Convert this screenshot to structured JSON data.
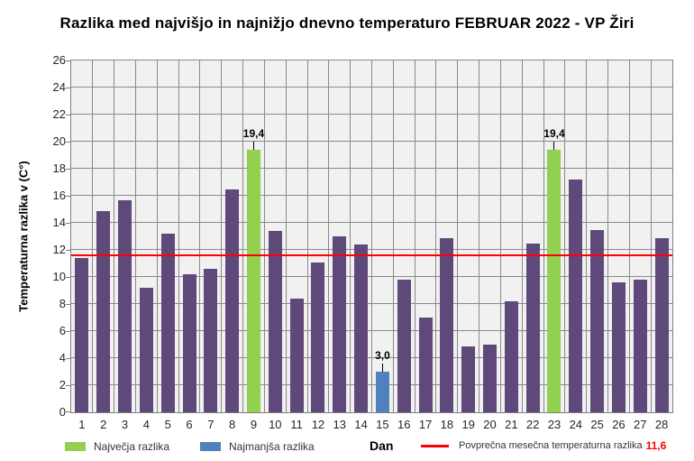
{
  "title": "Razlika med najvišjo in najnižjo dnevno temperaturo FEBRUAR 2022 - VP Žiri",
  "y_axis_title": "Temperaturna razlika v (C°)",
  "x_axis_title": "Dan",
  "legend": {
    "max_label": "Največja razlika",
    "min_label": "Najmanjša razlika",
    "avg_label": "Povprečna mesečna temperaturna razlika",
    "avg_value": "11,6"
  },
  "colors": {
    "bar_default": "#5F497A",
    "bar_max": "#92D050",
    "bar_min": "#4F81BD",
    "avg_line": "#FF0000",
    "plot_bg": "#F1F1F1",
    "gridline": "#898989"
  },
  "chart_data": {
    "type": "bar",
    "title": "Razlika med najvišjo in najnižjo dnevno temperaturo FEBRUAR 2022 - VP Žiri",
    "xlabel": "Dan",
    "ylabel": "Temperaturna razlika v (C°)",
    "ylim": [
      0,
      26
    ],
    "ytick_step": 2,
    "grid": true,
    "legend_position": "bottom",
    "categories": [
      1,
      2,
      3,
      4,
      5,
      6,
      7,
      8,
      9,
      10,
      11,
      12,
      13,
      14,
      15,
      16,
      17,
      18,
      19,
      20,
      21,
      22,
      23,
      24,
      25,
      26,
      27,
      28
    ],
    "values": [
      11.4,
      14.9,
      15.7,
      9.2,
      13.2,
      10.2,
      10.6,
      16.5,
      19.4,
      13.4,
      8.4,
      11.1,
      13.0,
      12.4,
      3.0,
      9.8,
      7.0,
      12.9,
      4.9,
      5.0,
      8.2,
      12.5,
      19.4,
      17.2,
      13.5,
      9.6,
      9.8,
      12.9
    ],
    "average_line": 11.6,
    "highlight_max_days": [
      9,
      23
    ],
    "highlight_min_days": [
      15
    ],
    "data_labels": [
      {
        "day": 9,
        "text": "19,4"
      },
      {
        "day": 15,
        "text": "3,0"
      },
      {
        "day": 23,
        "text": "19,4"
      }
    ]
  }
}
